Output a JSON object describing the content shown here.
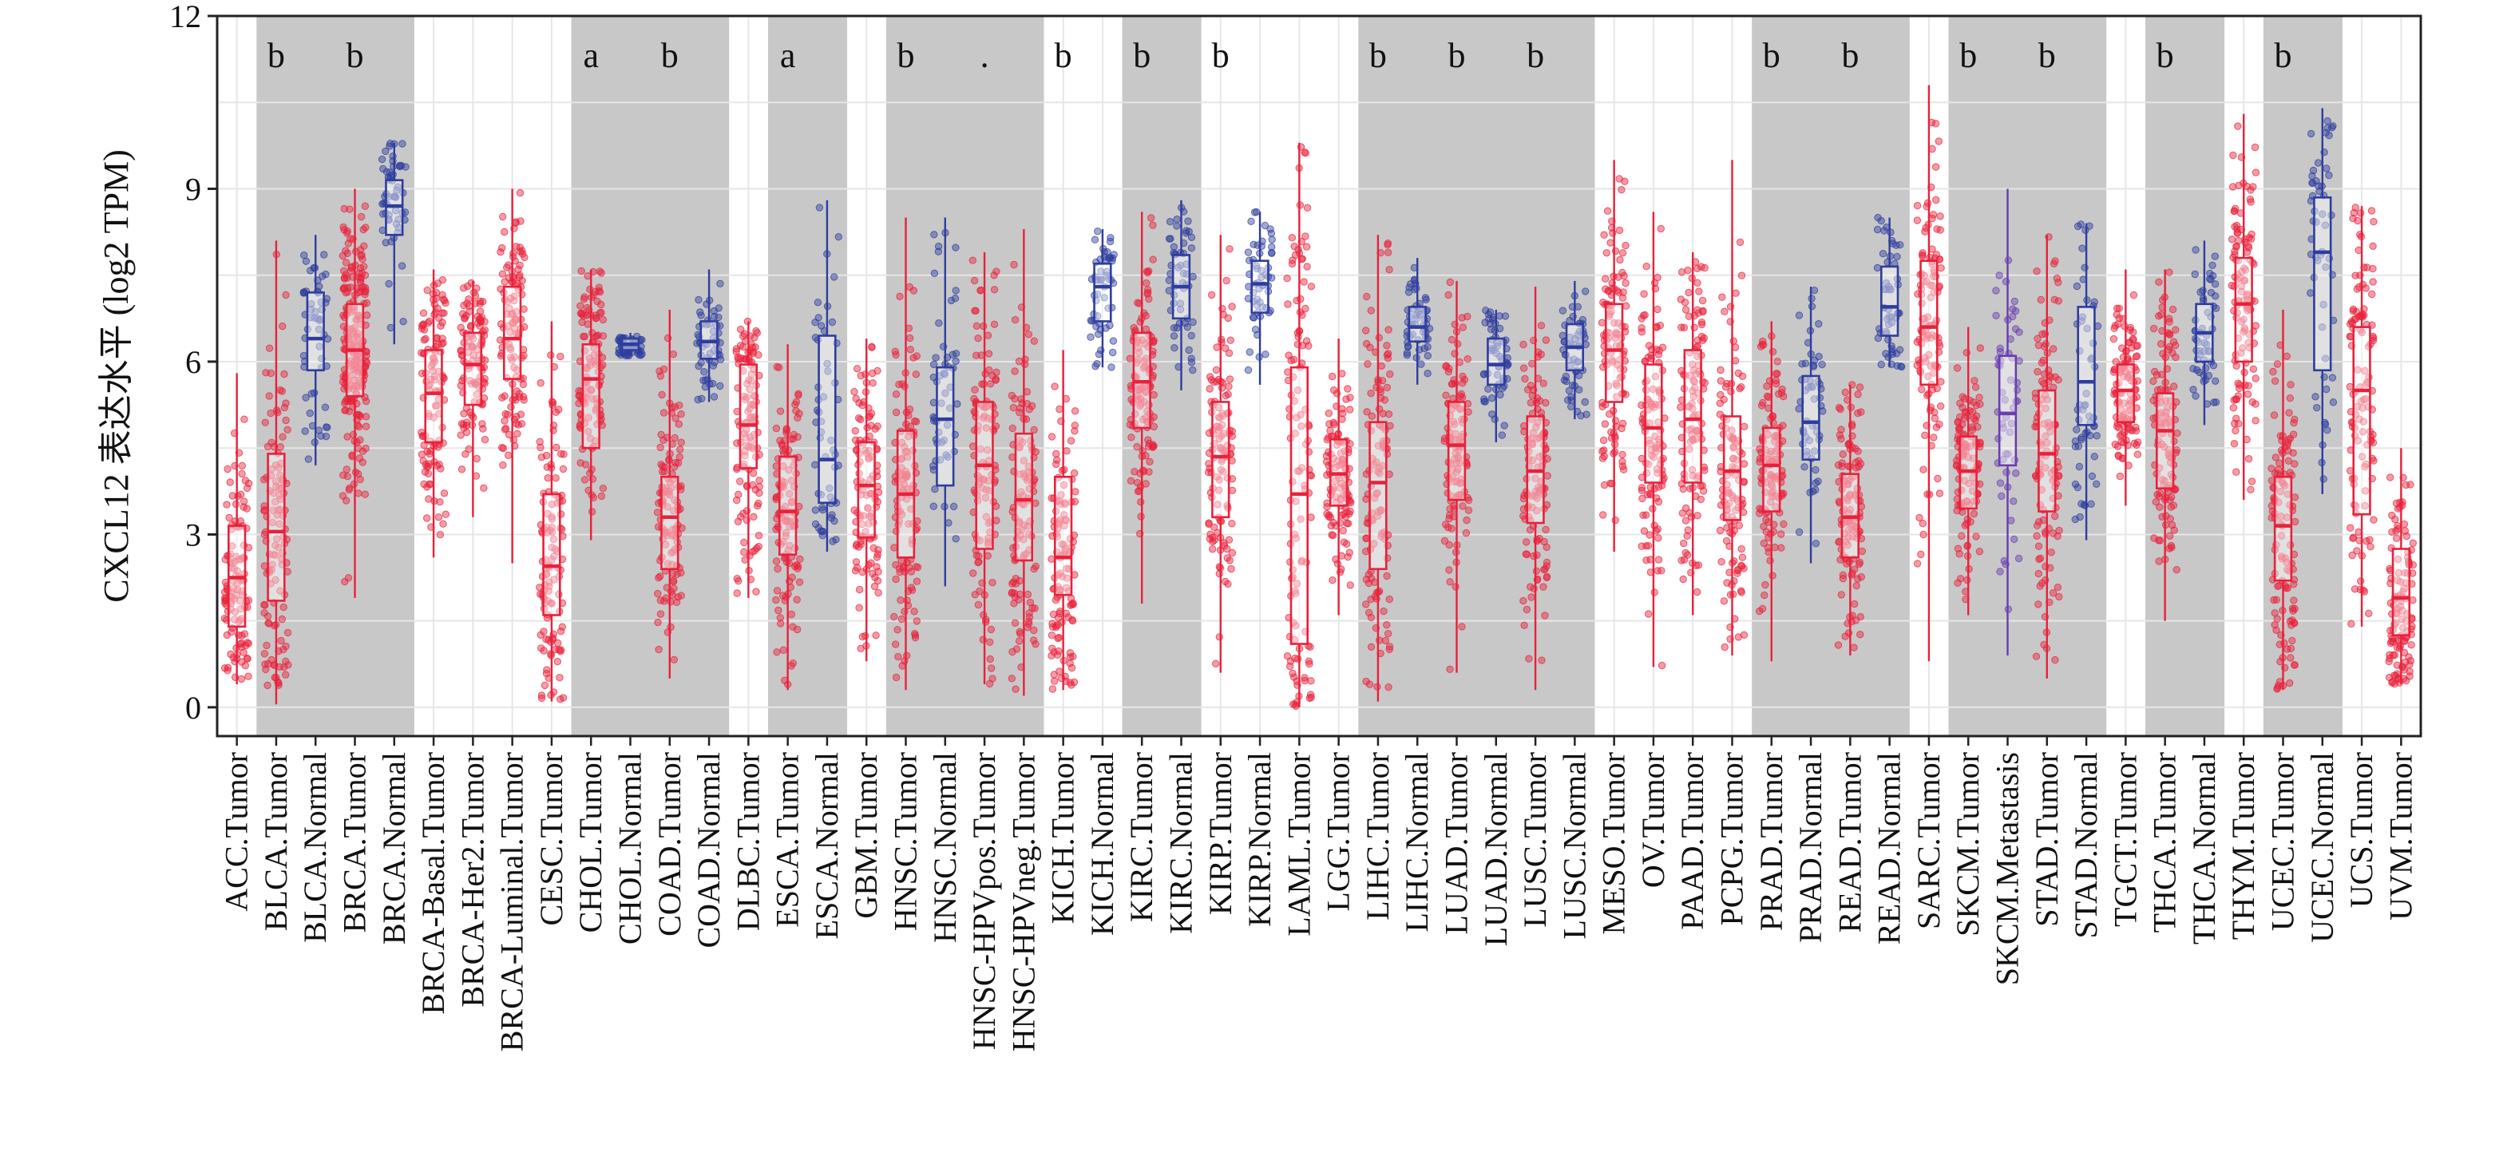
{
  "chart_data": {
    "type": "box",
    "ylabel": "CXCL12 表达水平 (log2 TPM)",
    "ylim": [
      -0.5,
      12
    ],
    "yticks": [
      0,
      3,
      6,
      9,
      12
    ],
    "grid": true,
    "colors": {
      "tumor": "#e8213a",
      "normal": "#2e3d9e",
      "metastasis": "#6a3db0",
      "shade": "#c8c8c8",
      "gridline": "#e6e6e6"
    },
    "categories": [
      {
        "label": "ACC.Tumor",
        "group": "tumor",
        "q1": 1.4,
        "median": 2.25,
        "q3": 3.15,
        "min": 0.4,
        "max": 5.8,
        "shade": false,
        "sig": ""
      },
      {
        "label": "BLCA.Tumor",
        "group": "tumor",
        "q1": 1.85,
        "median": 3.05,
        "q3": 4.4,
        "min": 0.05,
        "max": 8.1,
        "shade": true,
        "sig": "b"
      },
      {
        "label": "BLCA.Normal",
        "group": "normal",
        "q1": 5.85,
        "median": 6.4,
        "q3": 7.2,
        "min": 4.2,
        "max": 8.2,
        "shade": true,
        "sig": ""
      },
      {
        "label": "BRCA.Tumor",
        "group": "tumor",
        "q1": 5.4,
        "median": 6.2,
        "q3": 7.0,
        "min": 1.9,
        "max": 9.0,
        "shade": true,
        "sig": "b"
      },
      {
        "label": "BRCA.Normal",
        "group": "normal",
        "q1": 8.2,
        "median": 8.7,
        "q3": 9.15,
        "min": 6.3,
        "max": 9.8,
        "shade": true,
        "sig": ""
      },
      {
        "label": "BRCA-Basal.Tumor",
        "group": "tumor",
        "q1": 4.6,
        "median": 5.45,
        "q3": 6.2,
        "min": 2.6,
        "max": 7.6,
        "shade": false,
        "sig": ""
      },
      {
        "label": "BRCA-Her2.Tumor",
        "group": "tumor",
        "q1": 5.25,
        "median": 5.95,
        "q3": 6.5,
        "min": 3.3,
        "max": 7.4,
        "shade": false,
        "sig": ""
      },
      {
        "label": "BRCA-Luminal.Tumor",
        "group": "tumor",
        "q1": 5.7,
        "median": 6.4,
        "q3": 7.3,
        "min": 2.5,
        "max": 9.0,
        "shade": false,
        "sig": ""
      },
      {
        "label": "CESC.Tumor",
        "group": "tumor",
        "q1": 1.6,
        "median": 2.45,
        "q3": 3.7,
        "min": 0.1,
        "max": 6.7,
        "shade": false,
        "sig": ""
      },
      {
        "label": "CHOL.Tumor",
        "group": "tumor",
        "q1": 4.5,
        "median": 5.7,
        "q3": 6.3,
        "min": 2.9,
        "max": 7.6,
        "shade": true,
        "sig": "a"
      },
      {
        "label": "CHOL.Normal",
        "group": "normal",
        "q1": 6.2,
        "median": 6.3,
        "q3": 6.4,
        "min": 6.1,
        "max": 6.5,
        "shade": true,
        "sig": ""
      },
      {
        "label": "COAD.Tumor",
        "group": "tumor",
        "q1": 2.4,
        "median": 3.3,
        "q3": 4.0,
        "min": 0.5,
        "max": 6.9,
        "shade": true,
        "sig": "b"
      },
      {
        "label": "COAD.Normal",
        "group": "normal",
        "q1": 6.05,
        "median": 6.35,
        "q3": 6.7,
        "min": 5.3,
        "max": 7.6,
        "shade": true,
        "sig": ""
      },
      {
        "label": "DLBC.Tumor",
        "group": "tumor",
        "q1": 4.15,
        "median": 4.9,
        "q3": 5.95,
        "min": 1.9,
        "max": 6.7,
        "shade": false,
        "sig": ""
      },
      {
        "label": "ESCA.Tumor",
        "group": "tumor",
        "q1": 2.65,
        "median": 3.4,
        "q3": 4.35,
        "min": 0.3,
        "max": 6.3,
        "shade": true,
        "sig": "a"
      },
      {
        "label": "ESCA.Normal",
        "group": "normal",
        "q1": 3.55,
        "median": 4.3,
        "q3": 6.45,
        "min": 2.7,
        "max": 8.8,
        "shade": true,
        "sig": ""
      },
      {
        "label": "GBM.Tumor",
        "group": "tumor",
        "q1": 2.95,
        "median": 3.85,
        "q3": 4.6,
        "min": 0.8,
        "max": 6.4,
        "shade": false,
        "sig": ""
      },
      {
        "label": "HNSC.Tumor",
        "group": "tumor",
        "q1": 2.6,
        "median": 3.7,
        "q3": 4.8,
        "min": 0.3,
        "max": 8.5,
        "shade": true,
        "sig": "b"
      },
      {
        "label": "HNSC.Normal",
        "group": "normal",
        "q1": 3.85,
        "median": 5.0,
        "q3": 5.9,
        "min": 2.1,
        "max": 8.5,
        "shade": true,
        "sig": ""
      },
      {
        "label": "HNSC-HPVpos.Tumor",
        "group": "tumor",
        "q1": 2.75,
        "median": 4.2,
        "q3": 5.3,
        "min": 0.4,
        "max": 7.9,
        "shade": true,
        "sig": "."
      },
      {
        "label": "HNSC-HPVneg.Tumor",
        "group": "tumor",
        "q1": 2.55,
        "median": 3.6,
        "q3": 4.75,
        "min": 0.2,
        "max": 8.3,
        "shade": true,
        "sig": ""
      },
      {
        "label": "KICH.Tumor",
        "group": "tumor",
        "q1": 1.95,
        "median": 2.6,
        "q3": 4.0,
        "min": 0.3,
        "max": 6.2,
        "shade": false,
        "sig": "b"
      },
      {
        "label": "KICH.Normal",
        "group": "normal",
        "q1": 6.7,
        "median": 7.3,
        "q3": 7.7,
        "min": 5.9,
        "max": 8.3,
        "shade": false,
        "sig": ""
      },
      {
        "label": "KIRC.Tumor",
        "group": "tumor",
        "q1": 4.85,
        "median": 5.65,
        "q3": 6.5,
        "min": 1.8,
        "max": 8.6,
        "shade": true,
        "sig": "b"
      },
      {
        "label": "KIRC.Normal",
        "group": "normal",
        "q1": 6.75,
        "median": 7.3,
        "q3": 7.85,
        "min": 5.5,
        "max": 8.8,
        "shade": true,
        "sig": ""
      },
      {
        "label": "KIRP.Tumor",
        "group": "tumor",
        "q1": 3.3,
        "median": 4.35,
        "q3": 5.3,
        "min": 0.6,
        "max": 8.2,
        "shade": false,
        "sig": "b"
      },
      {
        "label": "KIRP.Normal",
        "group": "normal",
        "q1": 6.85,
        "median": 7.35,
        "q3": 7.75,
        "min": 5.6,
        "max": 8.6,
        "shade": false,
        "sig": ""
      },
      {
        "label": "LAML.Tumor",
        "group": "tumor",
        "q1": 1.1,
        "median": 3.7,
        "q3": 5.9,
        "min": 0.0,
        "max": 9.8,
        "shade": false,
        "sig": ""
      },
      {
        "label": "LGG.Tumor",
        "group": "tumor",
        "q1": 3.5,
        "median": 4.05,
        "q3": 4.65,
        "min": 1.6,
        "max": 6.4,
        "shade": false,
        "sig": ""
      },
      {
        "label": "LIHC.Tumor",
        "group": "tumor",
        "q1": 2.4,
        "median": 3.9,
        "q3": 4.95,
        "min": 0.1,
        "max": 8.2,
        "shade": true,
        "sig": "b"
      },
      {
        "label": "LIHC.Normal",
        "group": "normal",
        "q1": 6.35,
        "median": 6.6,
        "q3": 6.95,
        "min": 5.6,
        "max": 7.8,
        "shade": true,
        "sig": ""
      },
      {
        "label": "LUAD.Tumor",
        "group": "tumor",
        "q1": 3.6,
        "median": 4.55,
        "q3": 5.3,
        "min": 0.6,
        "max": 7.4,
        "shade": true,
        "sig": "b"
      },
      {
        "label": "LUAD.Normal",
        "group": "normal",
        "q1": 5.6,
        "median": 5.95,
        "q3": 6.4,
        "min": 4.6,
        "max": 6.9,
        "shade": true,
        "sig": ""
      },
      {
        "label": "LUSC.Tumor",
        "group": "tumor",
        "q1": 3.2,
        "median": 4.1,
        "q3": 5.05,
        "min": 0.3,
        "max": 7.3,
        "shade": true,
        "sig": "b"
      },
      {
        "label": "LUSC.Normal",
        "group": "normal",
        "q1": 5.85,
        "median": 6.25,
        "q3": 6.65,
        "min": 5.0,
        "max": 7.4,
        "shade": true,
        "sig": ""
      },
      {
        "label": "MESO.Tumor",
        "group": "tumor",
        "q1": 5.3,
        "median": 6.2,
        "q3": 7.0,
        "min": 2.7,
        "max": 9.5,
        "shade": false,
        "sig": ""
      },
      {
        "label": "OV.Tumor",
        "group": "tumor",
        "q1": 3.9,
        "median": 4.85,
        "q3": 5.95,
        "min": 0.7,
        "max": 8.6,
        "shade": false,
        "sig": ""
      },
      {
        "label": "PAAD.Tumor",
        "group": "tumor",
        "q1": 3.9,
        "median": 5.0,
        "q3": 6.2,
        "min": 1.6,
        "max": 7.9,
        "shade": false,
        "sig": ""
      },
      {
        "label": "PCPG.Tumor",
        "group": "tumor",
        "q1": 3.25,
        "median": 4.1,
        "q3": 5.05,
        "min": 0.9,
        "max": 9.5,
        "shade": false,
        "sig": ""
      },
      {
        "label": "PRAD.Tumor",
        "group": "tumor",
        "q1": 3.4,
        "median": 4.2,
        "q3": 4.85,
        "min": 0.8,
        "max": 6.7,
        "shade": true,
        "sig": "b"
      },
      {
        "label": "PRAD.Normal",
        "group": "normal",
        "q1": 4.3,
        "median": 4.95,
        "q3": 5.75,
        "min": 2.5,
        "max": 7.3,
        "shade": true,
        "sig": ""
      },
      {
        "label": "READ.Tumor",
        "group": "tumor",
        "q1": 2.6,
        "median": 3.3,
        "q3": 4.05,
        "min": 0.9,
        "max": 5.6,
        "shade": true,
        "sig": "b"
      },
      {
        "label": "READ.Normal",
        "group": "normal",
        "q1": 6.45,
        "median": 6.95,
        "q3": 7.65,
        "min": 5.9,
        "max": 8.5,
        "shade": true,
        "sig": ""
      },
      {
        "label": "SARC.Tumor",
        "group": "tumor",
        "q1": 5.6,
        "median": 6.6,
        "q3": 7.75,
        "min": 0.8,
        "max": 10.8,
        "shade": false,
        "sig": ""
      },
      {
        "label": "SKCM.Tumor",
        "group": "tumor",
        "q1": 3.45,
        "median": 4.1,
        "q3": 4.7,
        "min": 1.6,
        "max": 6.6,
        "shade": true,
        "sig": "b"
      },
      {
        "label": "SKCM.Metastasis",
        "group": "metastasis",
        "q1": 4.2,
        "median": 5.1,
        "q3": 6.1,
        "min": 0.9,
        "max": 9.0,
        "shade": true,
        "sig": ""
      },
      {
        "label": "STAD.Tumor",
        "group": "tumor",
        "q1": 3.4,
        "median": 4.4,
        "q3": 5.5,
        "min": 0.5,
        "max": 8.2,
        "shade": true,
        "sig": "b"
      },
      {
        "label": "STAD.Normal",
        "group": "normal",
        "q1": 4.9,
        "median": 5.65,
        "q3": 6.95,
        "min": 2.9,
        "max": 8.4,
        "shade": true,
        "sig": ""
      },
      {
        "label": "TGCT.Tumor",
        "group": "tumor",
        "q1": 4.95,
        "median": 5.5,
        "q3": 5.95,
        "min": 3.5,
        "max": 7.6,
        "shade": false,
        "sig": ""
      },
      {
        "label": "THCA.Tumor",
        "group": "tumor",
        "q1": 3.8,
        "median": 4.8,
        "q3": 5.45,
        "min": 1.5,
        "max": 7.6,
        "shade": true,
        "sig": "b"
      },
      {
        "label": "THCA.Normal",
        "group": "normal",
        "q1": 6.0,
        "median": 6.5,
        "q3": 7.0,
        "min": 4.9,
        "max": 8.1,
        "shade": true,
        "sig": ""
      },
      {
        "label": "THYM.Tumor",
        "group": "tumor",
        "q1": 6.0,
        "median": 7.0,
        "q3": 7.8,
        "min": 3.6,
        "max": 10.3,
        "shade": false,
        "sig": ""
      },
      {
        "label": "UCEC.Tumor",
        "group": "tumor",
        "q1": 2.2,
        "median": 3.15,
        "q3": 4.0,
        "min": 0.3,
        "max": 6.9,
        "shade": true,
        "sig": "b"
      },
      {
        "label": "UCEC.Normal",
        "group": "normal",
        "q1": 5.85,
        "median": 7.9,
        "q3": 8.85,
        "min": 3.7,
        "max": 10.4,
        "shade": true,
        "sig": ""
      },
      {
        "label": "UCS.Tumor",
        "group": "tumor",
        "q1": 3.35,
        "median": 5.5,
        "q3": 6.6,
        "min": 1.4,
        "max": 8.7,
        "shade": false,
        "sig": ""
      },
      {
        "label": "UVM.Tumor",
        "group": "tumor",
        "q1": 1.25,
        "median": 1.9,
        "q3": 2.75,
        "min": 0.4,
        "max": 4.5,
        "shade": false,
        "sig": ""
      }
    ]
  }
}
